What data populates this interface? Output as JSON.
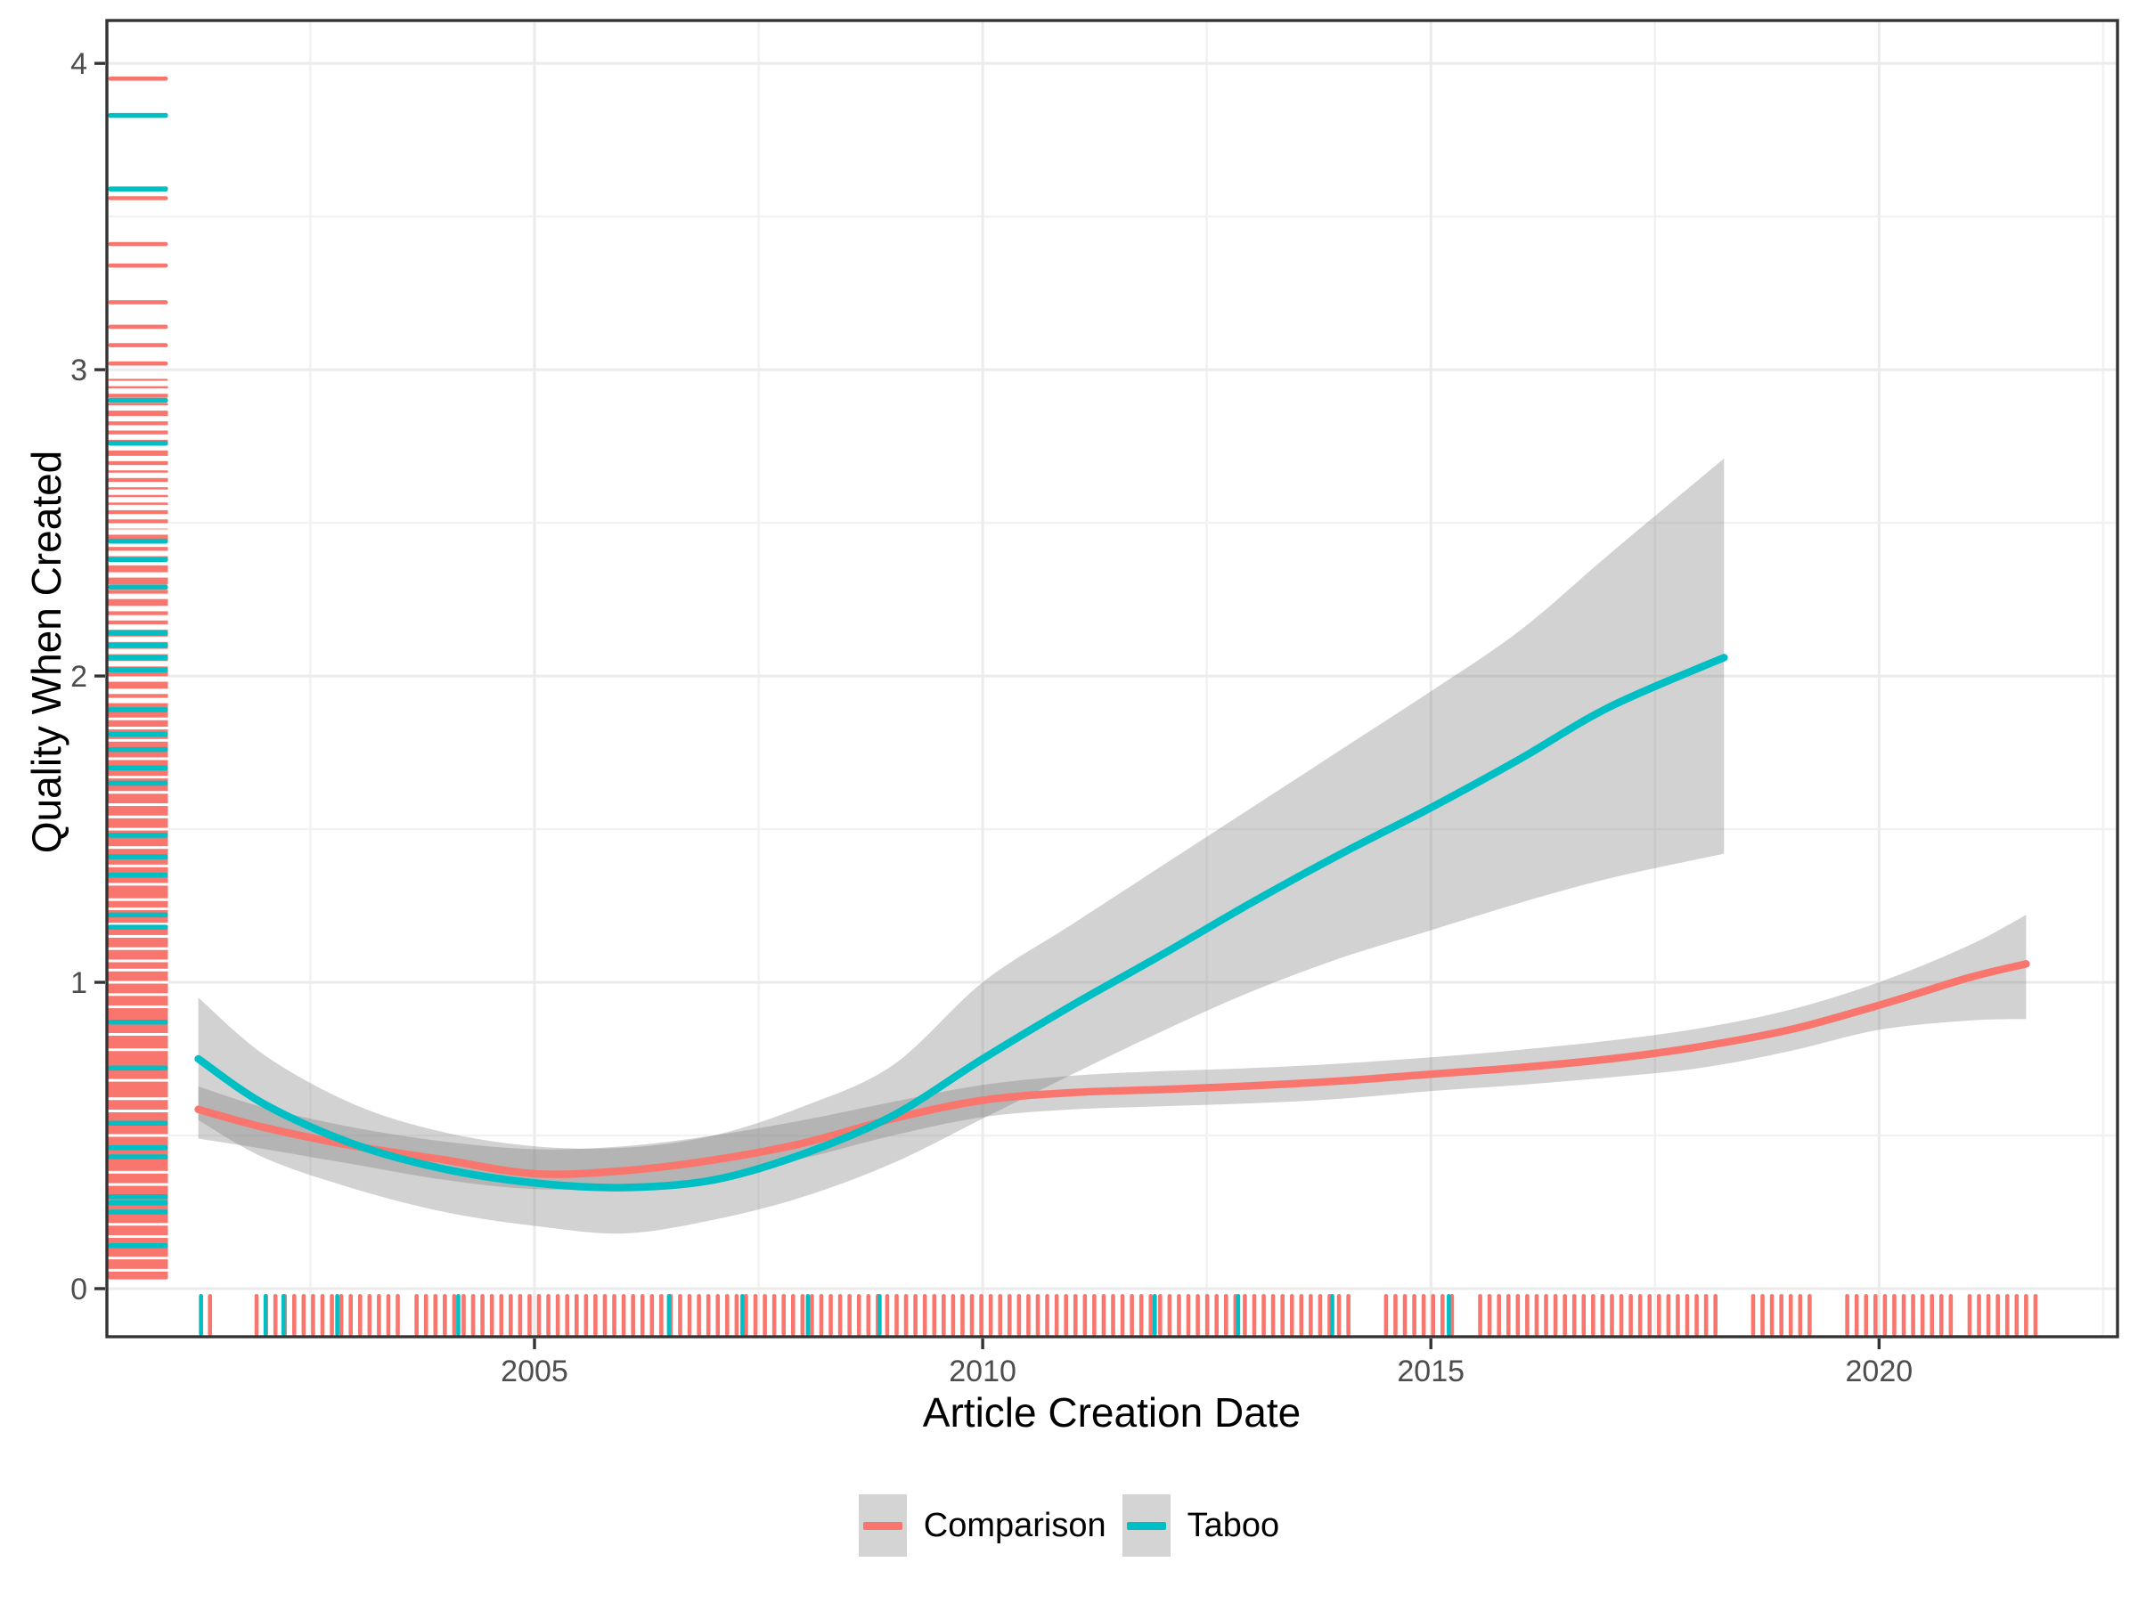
{
  "chart_data": {
    "type": "line",
    "subtype": "smoothed-trend-with-confidence-ribbons-and-rug-marginals",
    "title": "",
    "xlabel": "Article Creation Date",
    "ylabel": "Quality When Created",
    "x_axis": {
      "range": [
        2000.23,
        2022.66
      ],
      "major_ticks": [
        2005,
        2010,
        2015,
        2020
      ],
      "major_tick_labels": [
        "2005",
        "2010",
        "2015",
        "2020"
      ],
      "minor_ticks": [
        2002.5,
        2007.5,
        2012.5,
        2017.5,
        2022.5
      ]
    },
    "y_axis": {
      "range": [
        -0.157,
        4.14
      ],
      "major_ticks": [
        0,
        1,
        2,
        3,
        4
      ],
      "major_tick_labels": [
        "0",
        "1",
        "2",
        "3",
        "4"
      ],
      "minor_ticks": [
        0.5,
        1.5,
        2.5,
        3.5
      ]
    },
    "grid": "on",
    "legend_position": "bottom",
    "colors": {
      "comparison": "#F8766D",
      "taboo": "#00BFC4",
      "ribbon": "rgba(125,125,125,0.35)",
      "panel_border": "#333333",
      "grid_major": "#EBEBEB",
      "grid_minor": "#F1F1F1",
      "tick_mark": "#333333",
      "tick_label": "#4d4d4d",
      "legend_key_bg": "#D4D4D4"
    },
    "series": [
      {
        "name": "Comparison",
        "color": "#F8766D",
        "line": [
          [
            2001.25,
            0.585
          ],
          [
            2002,
            0.525
          ],
          [
            2003,
            0.465
          ],
          [
            2004,
            0.42
          ],
          [
            2005,
            0.375
          ],
          [
            2006,
            0.385
          ],
          [
            2007,
            0.42
          ],
          [
            2008,
            0.475
          ],
          [
            2009,
            0.555
          ],
          [
            2010,
            0.615
          ],
          [
            2011,
            0.64
          ],
          [
            2012,
            0.65
          ],
          [
            2013,
            0.662
          ],
          [
            2014,
            0.678
          ],
          [
            2015,
            0.7
          ],
          [
            2016,
            0.722
          ],
          [
            2017,
            0.75
          ],
          [
            2018,
            0.79
          ],
          [
            2019,
            0.845
          ],
          [
            2020,
            0.925
          ],
          [
            2021,
            1.015
          ],
          [
            2021.64,
            1.06
          ]
        ],
        "ci_upper": [
          [
            2001.25,
            0.66
          ],
          [
            2002,
            0.59
          ],
          [
            2003,
            0.525
          ],
          [
            2004,
            0.48
          ],
          [
            2005,
            0.455
          ],
          [
            2006,
            0.465
          ],
          [
            2007,
            0.5
          ],
          [
            2008,
            0.55
          ],
          [
            2009,
            0.61
          ],
          [
            2010,
            0.665
          ],
          [
            2011,
            0.695
          ],
          [
            2012,
            0.71
          ],
          [
            2013,
            0.72
          ],
          [
            2014,
            0.735
          ],
          [
            2015,
            0.755
          ],
          [
            2016,
            0.78
          ],
          [
            2017,
            0.81
          ],
          [
            2018,
            0.85
          ],
          [
            2019,
            0.91
          ],
          [
            2020,
            1.0
          ],
          [
            2021,
            1.12
          ],
          [
            2021.64,
            1.22
          ]
        ],
        "ci_lower": [
          [
            2001.25,
            0.49
          ],
          [
            2002,
            0.455
          ],
          [
            2003,
            0.405
          ],
          [
            2004,
            0.355
          ],
          [
            2005,
            0.325
          ],
          [
            2006,
            0.33
          ],
          [
            2007,
            0.365
          ],
          [
            2008,
            0.425
          ],
          [
            2009,
            0.5
          ],
          [
            2010,
            0.56
          ],
          [
            2011,
            0.585
          ],
          [
            2012,
            0.595
          ],
          [
            2013,
            0.605
          ],
          [
            2014,
            0.62
          ],
          [
            2015,
            0.645
          ],
          [
            2016,
            0.665
          ],
          [
            2017,
            0.69
          ],
          [
            2018,
            0.72
          ],
          [
            2019,
            0.775
          ],
          [
            2020,
            0.845
          ],
          [
            2021,
            0.875
          ],
          [
            2021.64,
            0.88
          ]
        ]
      },
      {
        "name": "Taboo",
        "color": "#00BFC4",
        "line": [
          [
            2001.25,
            0.75
          ],
          [
            2002,
            0.6
          ],
          [
            2003,
            0.47
          ],
          [
            2004,
            0.39
          ],
          [
            2005,
            0.345
          ],
          [
            2006,
            0.33
          ],
          [
            2007,
            0.355
          ],
          [
            2008,
            0.44
          ],
          [
            2009,
            0.565
          ],
          [
            2010,
            0.75
          ],
          [
            2011,
            0.925
          ],
          [
            2012,
            1.09
          ],
          [
            2013,
            1.26
          ],
          [
            2014,
            1.42
          ],
          [
            2015,
            1.57
          ],
          [
            2016,
            1.73
          ],
          [
            2017,
            1.9
          ],
          [
            2018.27,
            2.06
          ]
        ],
        "ci_upper": [
          [
            2001.25,
            0.95
          ],
          [
            2002,
            0.76
          ],
          [
            2003,
            0.6
          ],
          [
            2004,
            0.51
          ],
          [
            2005,
            0.465
          ],
          [
            2006,
            0.46
          ],
          [
            2007,
            0.5
          ],
          [
            2008,
            0.595
          ],
          [
            2009,
            0.73
          ],
          [
            2010,
            1.0
          ],
          [
            2011,
            1.19
          ],
          [
            2012,
            1.38
          ],
          [
            2013,
            1.57
          ],
          [
            2014,
            1.76
          ],
          [
            2015,
            1.95
          ],
          [
            2016,
            2.15
          ],
          [
            2017,
            2.4
          ],
          [
            2018.27,
            2.71
          ]
        ],
        "ci_lower": [
          [
            2001.25,
            0.55
          ],
          [
            2002,
            0.425
          ],
          [
            2003,
            0.325
          ],
          [
            2004,
            0.25
          ],
          [
            2005,
            0.205
          ],
          [
            2006,
            0.18
          ],
          [
            2007,
            0.225
          ],
          [
            2008,
            0.3
          ],
          [
            2009,
            0.41
          ],
          [
            2010,
            0.555
          ],
          [
            2011,
            0.7
          ],
          [
            2012,
            0.84
          ],
          [
            2013,
            0.97
          ],
          [
            2014,
            1.08
          ],
          [
            2015,
            1.17
          ],
          [
            2016,
            1.26
          ],
          [
            2017,
            1.34
          ],
          [
            2018.27,
            1.42
          ]
        ]
      }
    ],
    "rug_bottom": {
      "comparison_dense_from": 2001.9,
      "comparison_dense_to": 2021.85,
      "comparison_spacing": 0.105,
      "comparison_gaps": [
        [
          2003.52,
          2003.64
        ],
        [
          2014.18,
          2014.42
        ],
        [
          2015.25,
          2015.52
        ],
        [
          2018.26,
          2018.58
        ],
        [
          2019.32,
          2019.58
        ],
        [
          2020.82,
          2020.98
        ]
      ],
      "comparison_extra": [
        2001.38
      ],
      "taboo": [
        2001.28,
        2002.0,
        2002.2,
        2002.8,
        2004.15,
        2006.5,
        2007.32,
        2008.05,
        2008.85,
        2011.92,
        2012.85,
        2013.9,
        2015.2
      ]
    },
    "rug_left": {
      "comparison_solid_from": 0.03,
      "comparison_solid_to": 2.97,
      "comparison_white_gaps": [
        2.955,
        2.93,
        2.9,
        2.875,
        2.84,
        2.81,
        2.78,
        2.745,
        2.71,
        2.68,
        2.655,
        2.625,
        2.6,
        2.575,
        2.55,
        2.52,
        2.49,
        2.47,
        2.43,
        2.4,
        2.37,
        2.33,
        2.29,
        2.26,
        2.22,
        2.19,
        2.16,
        2.12,
        2.08,
        2.04,
        1.99,
        1.95,
        1.92,
        1.86,
        1.83,
        1.79,
        1.73,
        1.67,
        1.62,
        1.58,
        1.54,
        1.5,
        1.44,
        1.38,
        1.32,
        1.27,
        1.24,
        1.19,
        1.15,
        1.11,
        1.07,
        1.04,
        1.0,
        0.96,
        0.92,
        0.83,
        0.78,
        0.68,
        0.62,
        0.58,
        0.5,
        0.38,
        0.34,
        0.21,
        0.17,
        0.1,
        0.06
      ],
      "comparison_sparse": [
        3.95,
        3.56,
        3.41,
        3.34,
        3.22,
        3.14,
        3.08,
        3.02
      ],
      "taboo": [
        3.83,
        3.59,
        2.9,
        2.76,
        2.44,
        2.38,
        2.29,
        2.14,
        2.1,
        2.06,
        2.02,
        1.89,
        1.81,
        1.76,
        1.7,
        1.65,
        1.48,
        1.41,
        1.35,
        1.22,
        1.18,
        0.87,
        0.72,
        0.54,
        0.46,
        0.43,
        0.3,
        0.28,
        0.25,
        0.14
      ]
    }
  },
  "legend": {
    "entries": [
      {
        "label": "Comparison"
      },
      {
        "label": "Taboo"
      }
    ]
  }
}
